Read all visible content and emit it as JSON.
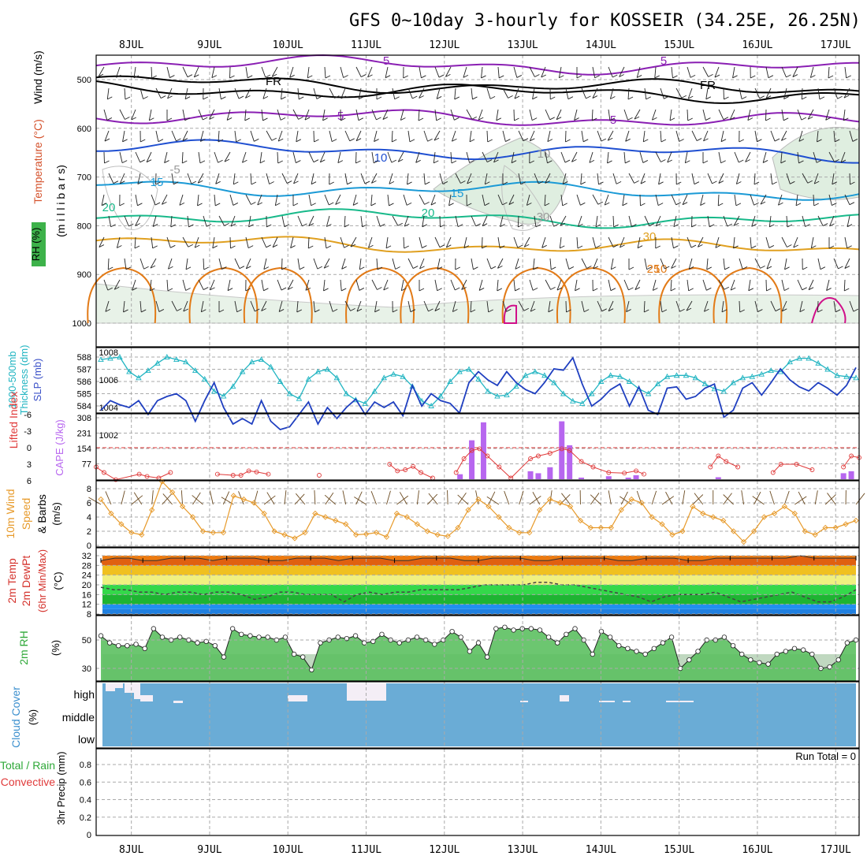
{
  "title": "GFS 0~10day 3-hourly for KOSSEIR (34.25E, 26.25N)",
  "dates": [
    "8JUL",
    "9JUL",
    "10JUL",
    "11JUL",
    "12JUL",
    "13JUL",
    "14JUL",
    "15JUL",
    "16JUL",
    "17JUL"
  ],
  "colors": {
    "purple": "#8a1fb3",
    "black": "#000000",
    "blue": "#1f4fd1",
    "lightblue": "#1b9ad6",
    "teal": "#18b98a",
    "gold": "#e0a020",
    "orange": "#e27b18",
    "magenta": "#d0108a",
    "thickness": "#22b5c2",
    "slp": "#1f3fc0",
    "cape": "#b766ef",
    "li": "#e03a3a",
    "wind10": "#e79a2a",
    "cloud": "#6aacd6"
  },
  "panels": {
    "upper": {
      "ylabel_wind": "Wind (m/s)",
      "ylabel_temp": "Temperature (°C)",
      "ylabel_rh": "RH (%)",
      "ylabel_mb": "(m i l l i b a r s)",
      "levels": [
        "500",
        "600",
        "700",
        "800",
        "900",
        "1000"
      ],
      "contour_labels": [
        "5",
        "FR",
        "FR",
        "5",
        "5",
        "10",
        "10",
        "15",
        "15",
        "20",
        "20",
        "30",
        "25",
        "30",
        "10",
        "-5",
        "5"
      ]
    },
    "thick": {
      "ylabel1": "Thickness (dm)",
      "ylabel2": "1000-500mb",
      "ylabel3": "SLP (mb)",
      "left_ticks": [
        "588",
        "587",
        "586",
        "585",
        "584"
      ],
      "right_ticks": [
        "1008",
        "1006",
        "1004",
        "1002"
      ]
    },
    "cape": {
      "ylabel1": "Lifted Index",
      "ylabel2": "CAPE (J/kg)",
      "left_ticks": [
        "-6",
        "-3",
        "0",
        "3",
        "6"
      ],
      "right_ticks": [
        "308",
        "231",
        "154",
        "77"
      ]
    },
    "wind": {
      "ylabel1": "10m Wind",
      "ylabel2": "Speed",
      "ylabel3": "& Barbs",
      "ylabel4": "(m/s)",
      "ticks": [
        "8",
        "6",
        "4",
        "2",
        "0"
      ]
    },
    "temp": {
      "ylabel1": "2m Temp",
      "ylabel2": "2m DewPt",
      "ylabel3": "(6hr Min/Max)",
      "ylabel4": "(°C)",
      "ticks": [
        "32",
        "28",
        "24",
        "20",
        "16",
        "12",
        "8"
      ]
    },
    "rh": {
      "ylabel1": "2m RH",
      "ylabel2": "(%)",
      "ticks": [
        "50",
        "30"
      ]
    },
    "cloud": {
      "ylabel1": "Cloud Cover",
      "ylabel2": "(%)",
      "levels": [
        "high",
        "middle",
        "low"
      ]
    },
    "precip": {
      "ylabel1": "3hr Precip (mm)",
      "ylabel2": "Total / Rain",
      "ylabel3": "Convective",
      "ticks": [
        "0.8",
        "0.6",
        "0.4",
        "0.2",
        "0"
      ],
      "run_total": "Run Total = 0"
    }
  },
  "chart_data": [
    {
      "type": "line",
      "panel": "thickness_slp",
      "series": [
        {
          "name": "1000-500mb Thickness (dm)",
          "values": [
            587.8,
            587.9,
            588.0,
            586.8,
            586.3,
            586.9,
            587.5,
            588.0,
            587.8,
            587.6,
            586.9,
            586.2,
            585.2,
            584.8,
            585.6,
            586.8,
            587.6,
            587.8,
            587.2,
            586.0,
            585.0,
            584.6,
            586.2,
            586.8,
            587.0,
            586.3,
            585.0,
            584.5,
            584.2,
            585.2,
            586.3,
            586.6,
            586.4,
            585.6,
            584.4,
            584.0,
            584.8,
            586.0,
            586.8,
            587.0,
            586.2,
            585.2,
            584.8,
            584.9,
            585.6,
            586.5,
            586.8,
            586.5,
            585.9,
            585.0,
            584.4,
            584.2,
            585.0,
            586.0,
            586.5,
            586.4,
            586.0,
            585.4,
            585.0,
            585.8,
            586.4,
            586.5,
            586.5,
            586.3,
            585.8,
            585.4,
            585.2,
            585.9,
            586.3,
            586.4,
            586.6,
            586.9,
            586.8,
            587.6,
            587.9,
            587.9,
            587.5,
            587.0,
            586.5,
            586.4,
            586.3
          ]
        },
        {
          "name": "SLP (mb)",
          "values": [
            1003.8,
            1004.5,
            1004.2,
            1004.0,
            1004.5,
            1003.5,
            1004.5,
            1004.8,
            1005.0,
            1004.5,
            1003.0,
            1004.5,
            1005.8,
            1004.0,
            1002.8,
            1003.2,
            1002.8,
            1004.5,
            1003.0,
            1002.4,
            1002.6,
            1003.5,
            1004.4,
            1002.8,
            1004.0,
            1003.2,
            1004.0,
            1004.6,
            1003.5,
            1004.4,
            1004.0,
            1004.4,
            1003.4,
            1005.6,
            1004.1,
            1005.0,
            1004.5,
            1004.3,
            1003.6,
            1005.8,
            1006.6,
            1006.0,
            1005.6,
            1006.6,
            1005.8,
            1005.3,
            1005.0,
            1005.8,
            1006.8,
            1006.7,
            1007.6,
            1005.7,
            1004.1,
            1004.6,
            1005.3,
            1005.7,
            1004.1,
            1005.5,
            1003.8,
            1003.5,
            1005.4,
            1005.5,
            1004.6,
            1004.8,
            1005.4,
            1005.7,
            1003.3,
            1003.8,
            1005.4,
            1005.8,
            1004.9,
            1005.8,
            1006.8,
            1006.0,
            1005.5,
            1005.2,
            1005.8,
            1005.4,
            1004.9,
            1005.6,
            1006.9
          ]
        }
      ]
    },
    {
      "type": "bar",
      "panel": "cape",
      "name": "CAPE (J/kg)",
      "bars": [
        {
          "day": 12.2,
          "value": 25
        },
        {
          "day": 12.35,
          "value": 195
        },
        {
          "day": 12.5,
          "value": 285
        },
        {
          "day": 13.1,
          "value": 40
        },
        {
          "day": 13.2,
          "value": 30
        },
        {
          "day": 13.35,
          "value": 60
        },
        {
          "day": 13.5,
          "value": 290
        },
        {
          "day": 13.6,
          "value": 170
        },
        {
          "day": 13.75,
          "value": 8
        },
        {
          "day": 14.1,
          "value": 15
        },
        {
          "day": 14.35,
          "value": 8
        },
        {
          "day": 14.45,
          "value": 20
        },
        {
          "day": 15.5,
          "value": 10
        },
        {
          "day": 17.1,
          "value": 30
        },
        {
          "day": 17.2,
          "value": 40
        }
      ]
    },
    {
      "type": "line",
      "panel": "lifted_index",
      "name": "Lifted Index",
      "points": [
        [
          7.55,
          3.5
        ],
        [
          7.65,
          4.5
        ],
        [
          7.8,
          5.8
        ],
        [
          8.1,
          4.8
        ],
        [
          8.2,
          5.2
        ],
        [
          8.35,
          5.5
        ],
        [
          8.5,
          4.5
        ],
        [
          9.1,
          4.8
        ],
        [
          9.3,
          5.0
        ],
        [
          9.4,
          5.0
        ],
        [
          9.5,
          4.2
        ],
        [
          9.6,
          4.4
        ],
        [
          9.75,
          4.8
        ],
        [
          10.4,
          5.0
        ],
        [
          11.3,
          3.0
        ],
        [
          11.4,
          4.2
        ],
        [
          11.5,
          4.0
        ],
        [
          11.6,
          3.4
        ],
        [
          11.7,
          4.5
        ],
        [
          11.85,
          5.5
        ],
        [
          12.15,
          4.5
        ],
        [
          12.25,
          2.0
        ],
        [
          12.35,
          0.5
        ],
        [
          12.45,
          0.2
        ],
        [
          12.55,
          1.5
        ],
        [
          12.7,
          3.5
        ],
        [
          12.85,
          5.5
        ],
        [
          13.1,
          2.0
        ],
        [
          13.2,
          1.5
        ],
        [
          13.35,
          1.0
        ],
        [
          13.5,
          0.2
        ],
        [
          13.6,
          0.5
        ],
        [
          13.75,
          2.5
        ],
        [
          13.9,
          3.5
        ],
        [
          14.1,
          4.5
        ],
        [
          14.3,
          4.6
        ],
        [
          14.45,
          4.2
        ],
        [
          14.55,
          4.8
        ],
        [
          15.4,
          3.5
        ],
        [
          15.5,
          1.5
        ],
        [
          15.6,
          2.5
        ],
        [
          15.75,
          3.5
        ],
        [
          16.2,
          4.5
        ],
        [
          16.3,
          3.0
        ],
        [
          16.5,
          3.0
        ],
        [
          16.7,
          4.0
        ],
        [
          17.1,
          3.5
        ],
        [
          17.2,
          1.5
        ],
        [
          17.3,
          1.8
        ]
      ]
    },
    {
      "type": "line",
      "panel": "wind10m",
      "name": "10m Wind Speed (m/s)",
      "values": [
        6.5,
        4.5,
        3.0,
        1.8,
        1.5,
        5.0,
        9.0,
        7.5,
        5.5,
        4.0,
        2.0,
        1.8,
        1.8,
        7.0,
        6.5,
        6.0,
        4.5,
        2.0,
        1.5,
        1.0,
        1.8,
        4.5,
        4.0,
        3.5,
        3.0,
        1.5,
        1.6,
        1.8,
        1.2,
        4.5,
        4.0,
        3.0,
        2.0,
        1.5,
        1.3,
        2.5,
        5.0,
        6.5,
        5.5,
        4.0,
        2.5,
        1.8,
        1.8,
        5.0,
        6.5,
        6.0,
        5.5,
        3.5,
        2.5,
        2.5,
        2.5,
        5.0,
        6.5,
        6.0,
        4.0,
        3.0,
        1.5,
        2.0,
        5.5,
        4.5,
        4.0,
        3.5,
        2.0,
        0.5,
        2.0,
        4.0,
        4.5,
        5.5,
        4.5,
        2.0,
        1.5,
        2.5,
        2.5,
        3.0,
        3.5
      ]
    },
    {
      "type": "area",
      "panel": "temp_dewpt",
      "series": [
        {
          "name": "2m Temp (°C)",
          "values": [
            30,
            31,
            31,
            30,
            30,
            31,
            31,
            31,
            30,
            31,
            31,
            31,
            30,
            30,
            31,
            31,
            31,
            30,
            31,
            31,
            31,
            30,
            30,
            31,
            31,
            31,
            30,
            30,
            31,
            31,
            31,
            30,
            30,
            31,
            31,
            31,
            31,
            30,
            30,
            31,
            31,
            31,
            30,
            30,
            31,
            31,
            31,
            31,
            31,
            31,
            32,
            31,
            31,
            31,
            31
          ]
        },
        {
          "name": "2m DewPt (°C)",
          "values": [
            19,
            18,
            18,
            17,
            17,
            16,
            17,
            17,
            16,
            17,
            17,
            16,
            14,
            15,
            17,
            17,
            16,
            16,
            16,
            13,
            16,
            17,
            16,
            17,
            17,
            18,
            18,
            18,
            18,
            19,
            20,
            20,
            20,
            20,
            21,
            21,
            20,
            20,
            19,
            18,
            17,
            16,
            15,
            13,
            15,
            16,
            16,
            16,
            17,
            15,
            13,
            14,
            15,
            16,
            17,
            15,
            13,
            13,
            15,
            18
          ]
        }
      ]
    },
    {
      "type": "area",
      "panel": "rh",
      "name": "2m RH (%)",
      "values": [
        53,
        48,
        46,
        46,
        47,
        44,
        58,
        52,
        50,
        52,
        50,
        48,
        49,
        46,
        38,
        58,
        54,
        53,
        52,
        52,
        50,
        52,
        40,
        38,
        29,
        48,
        50,
        52,
        51,
        53,
        48,
        49,
        54,
        50,
        48,
        50,
        52,
        50,
        47,
        50,
        56,
        52,
        42,
        48,
        38,
        58,
        59,
        57,
        58,
        58,
        57,
        52,
        48,
        54,
        58,
        50,
        40,
        56,
        52,
        46,
        44,
        42,
        40,
        44,
        48,
        52,
        30,
        36,
        42,
        50,
        50,
        52,
        46,
        40,
        36,
        34,
        33,
        40,
        42,
        44,
        43,
        40,
        30,
        31,
        36,
        48,
        50
      ]
    },
    {
      "type": "table",
      "panel": "precip",
      "name": "3hr Precip (mm)",
      "run_total": 0
    }
  ]
}
